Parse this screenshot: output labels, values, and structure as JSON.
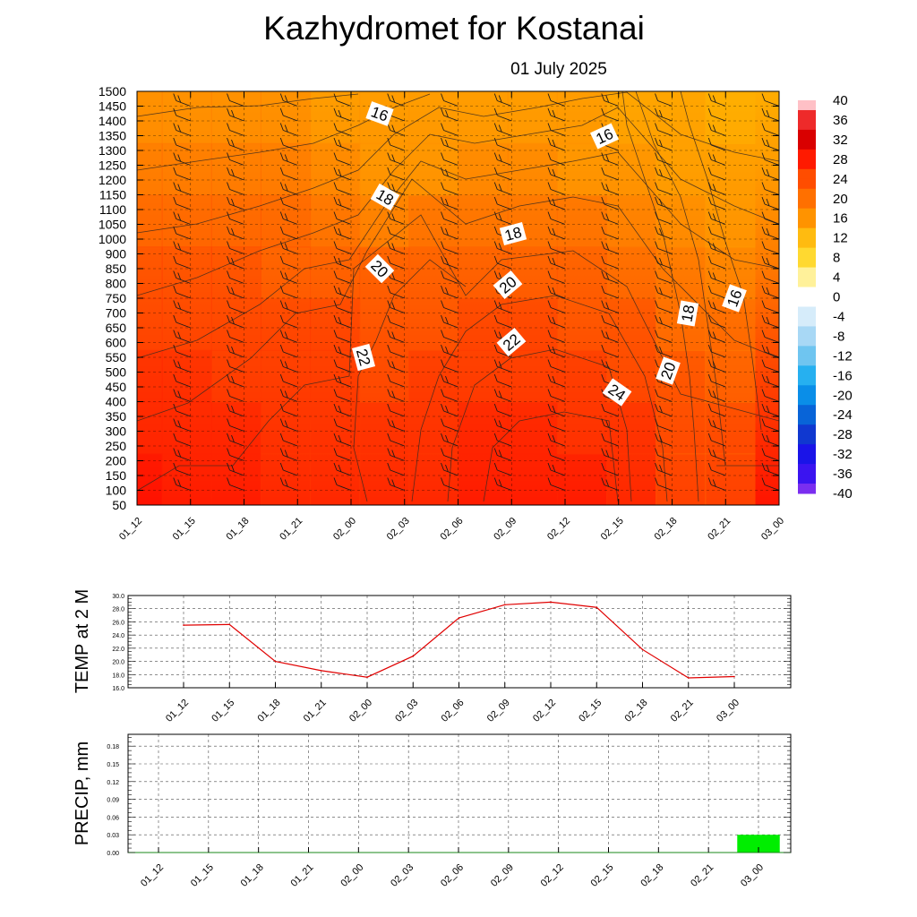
{
  "title": "Kazhydromet  for Kostanai",
  "subtitle": "01 July 2025",
  "chart_data": [
    {
      "type": "heatmap",
      "name": "cross-section",
      "x_categories": [
        "01_12",
        "01_15",
        "01_18",
        "01_21",
        "02_00",
        "02_03",
        "02_06",
        "02_09",
        "02_12",
        "02_15",
        "02_18",
        "02_21",
        "03_00"
      ],
      "y_levels": [
        50,
        100,
        150,
        200,
        250,
        300,
        350,
        400,
        450,
        500,
        550,
        600,
        650,
        700,
        750,
        800,
        850,
        900,
        1000,
        1050,
        1100,
        1150,
        1200,
        1250,
        1300,
        1350,
        1400,
        1450,
        1500
      ],
      "ylim": [
        50,
        1500
      ],
      "colorbar": {
        "min": -40,
        "max": 40,
        "labels": [
          "40",
          "36",
          "32",
          "28",
          "24",
          "20",
          "16",
          "12",
          "8",
          "4",
          "0",
          "-4",
          "-8",
          "-12",
          "-16",
          "-20",
          "-24",
          "-28",
          "-32",
          "-36",
          "-40"
        ],
        "colors": {
          "40": "#ffc0c6",
          "36": "#ee2a2a",
          "32": "#d90000",
          "28": "#ff1a00",
          "24": "#ff4d00",
          "20": "#ff7000",
          "16": "#ff9300",
          "12": "#ffbb10",
          "8": "#ffd930",
          "4": "#fff19a",
          "0": "#ffffff",
          "-4": "#d6ecfa",
          "-8": "#a8d8f5",
          "-12": "#6fc5f0",
          "-16": "#26b0f0",
          "-20": "#0a8ee8",
          "-24": "#0864d8",
          "-28": "#1038d0",
          "-32": "#1a14e8",
          "-36": "#3b14f0",
          "-40": "#7a2ef0"
        }
      },
      "temperature_grid_rows_low_to_high": [
        [
          28,
          27,
          26,
          25,
          25,
          24,
          25,
          26,
          26,
          26,
          24,
          21,
          20
        ],
        [
          27,
          27,
          26,
          25,
          25,
          24,
          25,
          26,
          26,
          25,
          24,
          21,
          20
        ],
        [
          26,
          26,
          25,
          25,
          25,
          23,
          24,
          25,
          25,
          24,
          23,
          20,
          19
        ],
        [
          25,
          25,
          25,
          24,
          24,
          23,
          23,
          24,
          24,
          23,
          22,
          19,
          18
        ],
        [
          24,
          24,
          24,
          23,
          23,
          22,
          22,
          23,
          23,
          22,
          20,
          18,
          17
        ],
        [
          22,
          22,
          22,
          22,
          20,
          19,
          20,
          21,
          21,
          20,
          18,
          16,
          15
        ],
        [
          20,
          20,
          20,
          20,
          18,
          17,
          17,
          18,
          19,
          17,
          16,
          15,
          14
        ],
        [
          18,
          18,
          18,
          18,
          17,
          16,
          16,
          16,
          17,
          16,
          15,
          14,
          13
        ]
      ],
      "contour_labels": [
        "16",
        "16",
        "18",
        "18",
        "20",
        "20",
        "22",
        "22",
        "20",
        "18",
        "16",
        "24"
      ],
      "wind_barbs": true,
      "grid": true
    },
    {
      "type": "line",
      "name": "temperature",
      "ylabel": "TEMP at 2 M",
      "ylim": [
        16,
        30
      ],
      "yticks": [
        "30.0",
        "28.0",
        "26.0",
        "24.0",
        "22.0",
        "20.0",
        "18.0",
        "16.0"
      ],
      "categories": [
        "01_12",
        "01_15",
        "01_18",
        "01_21",
        "02_00",
        "02_03",
        "02_06",
        "02_09",
        "02_12",
        "02_15",
        "02_18",
        "02_21",
        "03_00"
      ],
      "values": [
        25.5,
        25.6,
        20.0,
        18.6,
        17.6,
        20.8,
        26.6,
        28.6,
        29.0,
        28.2,
        21.8,
        17.5,
        17.7
      ],
      "color": "#e00000",
      "grid": true
    },
    {
      "type": "bar",
      "name": "precipitation",
      "ylabel": "PRECIP, mm",
      "ylim": [
        0,
        0.2
      ],
      "yticks": [
        "0.18",
        "0.15",
        "0.12",
        "0.09",
        "0.06",
        "0.03",
        "0.00"
      ],
      "categories": [
        "01_12",
        "01_15",
        "01_18",
        "01_21",
        "02_00",
        "02_03",
        "02_06",
        "02_09",
        "02_12",
        "02_15",
        "02_18",
        "02_21",
        "03_00"
      ],
      "values": [
        0,
        0,
        0,
        0,
        0,
        0,
        0,
        0,
        0,
        0,
        0,
        0,
        0.03
      ],
      "color": "#00ee00",
      "grid": true
    }
  ]
}
